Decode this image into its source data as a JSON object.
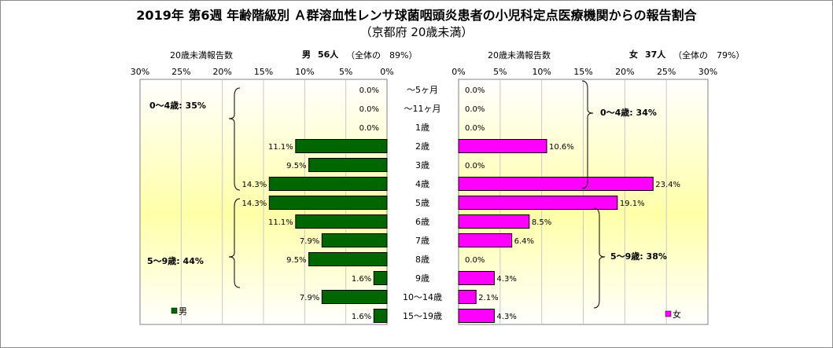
{
  "title": "2019年 第6週 年齢階級別 Ａ群溶血性レンサ球菌咽頭炎患者の小児科定点医療機関からの報告割合",
  "subtitle": "（京都府 20歳未満）",
  "male_header": {
    "count_label": "20歳未満報告数",
    "summary_sex": "男",
    "summary_count": "56人",
    "summary_share": "（全体の　89%）"
  },
  "female_header": {
    "count_label": "20歳未満報告数",
    "summary_sex": "女",
    "summary_count": "37人",
    "summary_share": "（全体の　79%）"
  },
  "legend": {
    "male": "男",
    "female": "女"
  },
  "brackets": {
    "male_0_4": "0～4歳: 35%",
    "male_5_9": "5～9歳: 44%",
    "female_0_4": "0～4歳: 34%",
    "female_5_9": "5～9歳: 38%"
  },
  "colors": {
    "male": "#006600",
    "female": "#ff00ff",
    "plot_top": "#ffffff",
    "plot_mid": "#ffffa0"
  },
  "chart_data": {
    "type": "bar",
    "orientation": "horizontal-butterfly",
    "categories": [
      "～5ヶ月",
      "～11ヶ月",
      "1歳",
      "2歳",
      "3歳",
      "4歳",
      "5歳",
      "6歳",
      "7歳",
      "8歳",
      "9歳",
      "10～14歳",
      "15～19歳"
    ],
    "series": [
      {
        "name": "男",
        "values": [
          0.0,
          0.0,
          0.0,
          11.1,
          9.5,
          14.3,
          14.3,
          11.1,
          7.9,
          9.5,
          1.6,
          7.9,
          1.6
        ]
      },
      {
        "name": "女",
        "values": [
          0.0,
          0.0,
          0.0,
          10.6,
          0.0,
          23.4,
          19.1,
          8.5,
          6.4,
          0.0,
          4.3,
          2.1,
          4.3
        ]
      }
    ],
    "xlim": [
      0,
      30
    ],
    "ticks": [
      0,
      5,
      10,
      15,
      20,
      25,
      30
    ],
    "tick_labels": [
      "0%",
      "5%",
      "10%",
      "15%",
      "20%",
      "25%",
      "30%"
    ],
    "grid": true,
    "legend_placement": "bottom"
  }
}
